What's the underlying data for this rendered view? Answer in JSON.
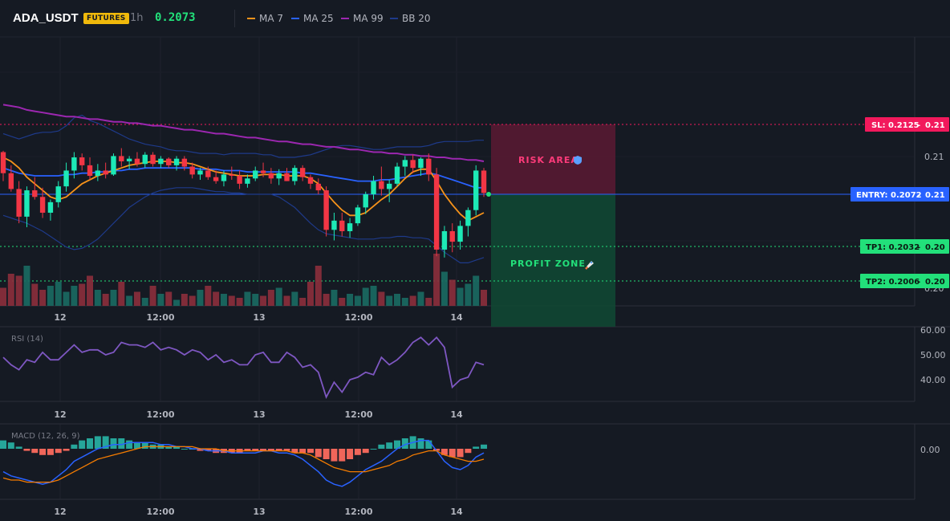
{
  "header": {
    "symbol": "ADA_USDT",
    "badge": "FUTURES",
    "timeframe": "1h",
    "price": "0.2073",
    "legend": [
      {
        "label": "MA 7",
        "color": "#f7931a"
      },
      {
        "label": "MA 25",
        "color": "#2962ff"
      },
      {
        "label": "MA 99",
        "color": "#9c27b0"
      },
      {
        "label": "BB 20",
        "color": "#1e3a8a"
      }
    ]
  },
  "colors": {
    "up": "#26a69a",
    "down": "#ef5350",
    "candle_up": "#1de9b6",
    "candle_down": "#f23645",
    "ma7": "#f7931a",
    "ma25": "#2962ff",
    "ma99": "#9c27b0",
    "bb": "#1e3a8a",
    "rsi": "#7e57c2",
    "macd": "#2962ff",
    "signal": "#f57c00",
    "sl": "#f2195c",
    "entry": "#2962ff",
    "tp": "#22e07a"
  },
  "chart_data": [
    {
      "type": "candlestick",
      "title": "ADA_USDT 1h",
      "x_ticks": [
        "12",
        "12:00",
        "13",
        "12:00",
        "14"
      ],
      "y_ticks": [
        "0.21",
        "0.20"
      ],
      "candles": [
        [
          0.2104,
          0.2105,
          0.2082,
          0.2088
        ],
        [
          0.2088,
          0.2094,
          0.2074,
          0.2076
        ],
        [
          0.2076,
          0.2082,
          0.205,
          0.2055
        ],
        [
          0.2055,
          0.2078,
          0.2047,
          0.2075
        ],
        [
          0.2075,
          0.2085,
          0.2068,
          0.207
        ],
        [
          0.207,
          0.2077,
          0.2054,
          0.2058
        ],
        [
          0.2058,
          0.2068,
          0.2052,
          0.2066
        ],
        [
          0.2066,
          0.2082,
          0.2062,
          0.2078
        ],
        [
          0.2078,
          0.2096,
          0.2074,
          0.209
        ],
        [
          0.209,
          0.2104,
          0.2084,
          0.21
        ],
        [
          0.21,
          0.2103,
          0.209,
          0.2094
        ],
        [
          0.2094,
          0.21,
          0.2083,
          0.2086
        ],
        [
          0.2086,
          0.2095,
          0.2082,
          0.209
        ],
        [
          0.209,
          0.2096,
          0.2084,
          0.2087
        ],
        [
          0.2087,
          0.2103,
          0.2086,
          0.2101
        ],
        [
          0.2101,
          0.2107,
          0.2093,
          0.2097
        ],
        [
          0.2097,
          0.2101,
          0.2091,
          0.2099
        ],
        [
          0.2099,
          0.2104,
          0.2093,
          0.2095
        ],
        [
          0.2095,
          0.2104,
          0.2092,
          0.2102
        ],
        [
          0.2102,
          0.2104,
          0.2093,
          0.2095
        ],
        [
          0.2095,
          0.2101,
          0.2092,
          0.2099
        ],
        [
          0.2099,
          0.21,
          0.2092,
          0.2094
        ],
        [
          0.2094,
          0.2101,
          0.209,
          0.2099
        ],
        [
          0.2099,
          0.2101,
          0.209,
          0.2093
        ],
        [
          0.2093,
          0.2096,
          0.2084,
          0.2087
        ],
        [
          0.2087,
          0.2092,
          0.2083,
          0.209
        ],
        [
          0.209,
          0.2093,
          0.2083,
          0.2085
        ],
        [
          0.2085,
          0.209,
          0.208,
          0.2082
        ],
        [
          0.2082,
          0.209,
          0.2078,
          0.2087
        ],
        [
          0.2087,
          0.2093,
          0.2083,
          0.2086
        ],
        [
          0.2086,
          0.209,
          0.2076,
          0.208
        ],
        [
          0.208,
          0.2087,
          0.2077,
          0.2084
        ],
        [
          0.2084,
          0.2093,
          0.2082,
          0.209
        ],
        [
          0.209,
          0.2096,
          0.2085,
          0.2088
        ],
        [
          0.2088,
          0.2092,
          0.208,
          0.2084
        ],
        [
          0.2084,
          0.2091,
          0.2079,
          0.2088
        ],
        [
          0.2088,
          0.2092,
          0.2082,
          0.2082
        ],
        [
          0.2082,
          0.2094,
          0.2079,
          0.2092
        ],
        [
          0.2092,
          0.2094,
          0.2082,
          0.2085
        ],
        [
          0.2085,
          0.2087,
          0.2076,
          0.208
        ],
        [
          0.208,
          0.2084,
          0.2072,
          0.2075
        ],
        [
          0.2075,
          0.2078,
          0.204,
          0.2045
        ],
        [
          0.2045,
          0.2058,
          0.2037,
          0.2052
        ],
        [
          0.2052,
          0.2058,
          0.204,
          0.2044
        ],
        [
          0.2044,
          0.2054,
          0.2039,
          0.205
        ],
        [
          0.205,
          0.2064,
          0.2048,
          0.2062
        ],
        [
          0.2062,
          0.2074,
          0.2057,
          0.2072
        ],
        [
          0.2072,
          0.2086,
          0.2068,
          0.2082
        ],
        [
          0.2082,
          0.2093,
          0.2071,
          0.2076
        ],
        [
          0.2076,
          0.2083,
          0.2066,
          0.208
        ],
        [
          0.208,
          0.2096,
          0.2078,
          0.2093
        ],
        [
          0.2093,
          0.2101,
          0.2086,
          0.2098
        ],
        [
          0.2098,
          0.2102,
          0.2088,
          0.2092
        ],
        [
          0.2092,
          0.21,
          0.2086,
          0.2099
        ],
        [
          0.2099,
          0.2103,
          0.2082,
          0.2087
        ],
        [
          0.2087,
          0.2092,
          0.2025,
          0.203
        ],
        [
          0.203,
          0.2048,
          0.2024,
          0.2044
        ],
        [
          0.2044,
          0.205,
          0.2028,
          0.2036
        ],
        [
          0.2036,
          0.2052,
          0.203,
          0.2048
        ],
        [
          0.2048,
          0.2062,
          0.204,
          0.206
        ],
        [
          0.206,
          0.2094,
          0.2056,
          0.209
        ],
        [
          0.209,
          0.2092,
          0.207,
          0.2073
        ]
      ],
      "volume": [
        18,
        32,
        30,
        40,
        22,
        16,
        20,
        24,
        14,
        20,
        22,
        30,
        16,
        12,
        16,
        24,
        10,
        14,
        8,
        20,
        12,
        14,
        6,
        12,
        10,
        16,
        20,
        14,
        12,
        10,
        8,
        14,
        12,
        10,
        16,
        18,
        10,
        14,
        8,
        24,
        40,
        12,
        16,
        8,
        12,
        10,
        18,
        20,
        14,
        10,
        12,
        8,
        10,
        14,
        8,
        52,
        34,
        26,
        18,
        22,
        30,
        16
      ],
      "ma7": [
        0.21,
        0.2097,
        0.2092,
        0.2085,
        0.208,
        0.2075,
        0.207,
        0.2068,
        0.207,
        0.2075,
        0.208,
        0.2083,
        0.2086,
        0.2088,
        0.209,
        0.2092,
        0.2094,
        0.2095,
        0.2096,
        0.2097,
        0.2097,
        0.2097,
        0.2096,
        0.2096,
        0.2095,
        0.2093,
        0.2091,
        0.2089,
        0.2088,
        0.2087,
        0.2086,
        0.2086,
        0.2086,
        0.2087,
        0.2087,
        0.2087,
        0.2086,
        0.2086,
        0.2086,
        0.2084,
        0.208,
        0.2073,
        0.2066,
        0.206,
        0.2056,
        0.2056,
        0.2058,
        0.2063,
        0.2068,
        0.2072,
        0.2078,
        0.2084,
        0.2089,
        0.2091,
        0.2091,
        0.2082,
        0.2072,
        0.2064,
        0.2057,
        0.2052,
        0.2055,
        0.2058
      ],
      "ma25": [
        0.2092,
        0.209,
        0.2088,
        0.2087,
        0.2086,
        0.2086,
        0.2086,
        0.2086,
        0.2087,
        0.2087,
        0.2088,
        0.2088,
        0.2089,
        0.2089,
        0.209,
        0.209,
        0.2091,
        0.2091,
        0.2092,
        0.2092,
        0.2092,
        0.2092,
        0.2092,
        0.2092,
        0.2092,
        0.2091,
        0.2091,
        0.2091,
        0.209,
        0.209,
        0.209,
        0.2089,
        0.2089,
        0.2089,
        0.2089,
        0.2089,
        0.2089,
        0.2089,
        0.2088,
        0.2088,
        0.2087,
        0.2086,
        0.2085,
        0.2084,
        0.2083,
        0.2082,
        0.2082,
        0.2082,
        0.2083,
        0.2083,
        0.2084,
        0.2085,
        0.2086,
        0.2087,
        0.2088,
        0.2087,
        0.2085,
        0.2083,
        0.2081,
        0.2079,
        0.2077,
        0.2077
      ],
      "ma99": [
        0.214,
        0.2139,
        0.2138,
        0.2136,
        0.2135,
        0.2134,
        0.2133,
        0.2132,
        0.2131,
        0.2131,
        0.213,
        0.2129,
        0.2129,
        0.2128,
        0.2127,
        0.2127,
        0.2126,
        0.2126,
        0.2125,
        0.2124,
        0.2124,
        0.2123,
        0.2122,
        0.2121,
        0.2121,
        0.212,
        0.2119,
        0.2118,
        0.2118,
        0.2117,
        0.2116,
        0.2115,
        0.2115,
        0.2114,
        0.2113,
        0.2112,
        0.2112,
        0.2111,
        0.211,
        0.211,
        0.2109,
        0.2108,
        0.2108,
        0.2107,
        0.2106,
        0.2106,
        0.2105,
        0.2104,
        0.2104,
        0.2103,
        0.2103,
        0.2102,
        0.2102,
        0.2101,
        0.2101,
        0.21,
        0.21,
        0.2099,
        0.2099,
        0.2098,
        0.2098,
        0.2097
      ],
      "bb_upper": [
        0.2118,
        0.2116,
        0.2114,
        0.2116,
        0.2118,
        0.2119,
        0.2119,
        0.212,
        0.2124,
        0.213,
        0.2132,
        0.2128,
        0.2126,
        0.2123,
        0.212,
        0.2117,
        0.2114,
        0.2112,
        0.211,
        0.2109,
        0.2108,
        0.2106,
        0.2105,
        0.2105,
        0.2104,
        0.2103,
        0.2103,
        0.2103,
        0.2102,
        0.2103,
        0.2103,
        0.2103,
        0.2103,
        0.2102,
        0.2102,
        0.21,
        0.21,
        0.21,
        0.2101,
        0.2102,
        0.2104,
        0.2106,
        0.2108,
        0.2109,
        0.2109,
        0.2108,
        0.2107,
        0.2106,
        0.2106,
        0.2107,
        0.2108,
        0.2108,
        0.2108,
        0.2108,
        0.2109,
        0.2111,
        0.2112,
        0.2112,
        0.2112,
        0.2112,
        0.2113,
        0.2113
      ],
      "bb_lower": [
        0.2056,
        0.2054,
        0.2052,
        0.205,
        0.2047,
        0.2044,
        0.204,
        0.2036,
        0.2032,
        0.203,
        0.2031,
        0.2034,
        0.2038,
        0.2044,
        0.205,
        0.2056,
        0.2062,
        0.2066,
        0.207,
        0.2073,
        0.2075,
        0.2076,
        0.2077,
        0.2077,
        0.2077,
        0.2076,
        0.2075,
        0.2074,
        0.2074,
        0.2073,
        0.2073,
        0.2072,
        0.2072,
        0.2072,
        0.2072,
        0.207,
        0.2066,
        0.2062,
        0.2056,
        0.205,
        0.2045,
        0.2042,
        0.2041,
        0.204,
        0.2039,
        0.2038,
        0.2038,
        0.2038,
        0.2039,
        0.2039,
        0.204,
        0.204,
        0.2039,
        0.2039,
        0.2038,
        0.2033,
        0.2028,
        0.2024,
        0.202,
        0.202,
        0.2022,
        0.2024
      ]
    },
    {
      "type": "line",
      "title": "RSI (14)",
      "y_ticks": [
        "60.00",
        "50.00",
        "40.00"
      ],
      "ylim": [
        30,
        62
      ],
      "values": [
        49,
        46,
        44,
        48,
        47,
        51,
        48,
        48,
        51,
        54,
        51,
        52,
        52,
        50,
        51,
        55,
        54,
        54,
        53,
        55,
        52,
        53,
        52,
        50,
        52,
        51,
        48,
        50,
        47,
        48,
        46,
        46,
        50,
        51,
        47,
        47,
        51,
        49,
        45,
        46,
        43,
        33,
        39,
        35,
        40,
        41,
        43,
        42,
        49,
        46,
        48,
        51,
        55,
        57,
        54,
        57,
        53,
        37,
        40,
        41,
        47,
        46
      ]
    },
    {
      "type": "bar",
      "title": "MACD (12, 26, 9)",
      "y_ticks": [
        "0.00"
      ],
      "histogram": [
        0.0004,
        0.0003,
        0.0001,
        -0.0001,
        -0.0002,
        -0.0003,
        -0.0003,
        -0.0002,
        -0.0001,
        0.0002,
        0.0004,
        0.0005,
        0.0006,
        0.0006,
        0.0005,
        0.0005,
        0.0004,
        0.0003,
        0.0003,
        0.0002,
        0.0002,
        0.0001,
        0.0001,
        0,
        0,
        -0.0001,
        -0.0001,
        -0.0002,
        -0.0002,
        -0.0002,
        -0.0002,
        -0.0001,
        -0.0001,
        -0.0001,
        -0.0001,
        -0.0001,
        -0.0001,
        -0.0002,
        -0.0002,
        -0.0002,
        -0.0004,
        -0.0005,
        -0.0006,
        -0.0006,
        -0.0005,
        -0.0003,
        -0.0002,
        0,
        0.0002,
        0.0003,
        0.0004,
        0.0005,
        0.0006,
        0.0005,
        0.0004,
        -0.0001,
        -0.0003,
        -0.0004,
        -0.0004,
        -0.0002,
        0.0001,
        0.0002
      ],
      "macd": [
        -0.0011,
        -0.0013,
        -0.0014,
        -0.0015,
        -0.0016,
        -0.0017,
        -0.0016,
        -0.0013,
        -0.001,
        -0.0006,
        -0.0004,
        -0.0002,
        0,
        0.0001,
        0.0002,
        0.0002,
        0.0003,
        0.0003,
        0.0003,
        0.0003,
        0.0002,
        0.0002,
        0.0001,
        0.0001,
        0,
        0,
        -0.0001,
        -0.0001,
        -0.0001,
        -0.0002,
        -0.0002,
        -0.0002,
        -0.0002,
        -0.0001,
        -0.0001,
        -0.0002,
        -0.0002,
        -0.0003,
        -0.0005,
        -0.0008,
        -0.0011,
        -0.0015,
        -0.0017,
        -0.0018,
        -0.0016,
        -0.0013,
        -0.001,
        -0.0008,
        -0.0006,
        -0.0003,
        0,
        0.0002,
        0.0003,
        0.0004,
        0.0004,
        -0.0001,
        -0.0006,
        -0.0009,
        -0.001,
        -0.0008,
        -0.0004,
        -0.0002
      ],
      "signal": [
        -0.0014,
        -0.0015,
        -0.0015,
        -0.0016,
        -0.0016,
        -0.0016,
        -0.0016,
        -0.0015,
        -0.0013,
        -0.0011,
        -0.0009,
        -0.0007,
        -0.0005,
        -0.0004,
        -0.0003,
        -0.0002,
        -0.0001,
        0,
        0.0001,
        0.0001,
        0.0001,
        0.0001,
        0.0001,
        0.0001,
        0.0001,
        0,
        0,
        0,
        -0.0001,
        -0.0001,
        -0.0001,
        -0.0001,
        -0.0001,
        -0.0001,
        -0.0001,
        -0.0001,
        -0.0001,
        -0.0002,
        -0.0002,
        -0.0003,
        -0.0005,
        -0.0007,
        -0.0009,
        -0.001,
        -0.0011,
        -0.0011,
        -0.0011,
        -0.001,
        -0.0009,
        -0.0008,
        -0.0006,
        -0.0005,
        -0.0003,
        -0.0002,
        -0.0001,
        -0.0001,
        -0.0003,
        -0.0004,
        -0.0005,
        -0.0006,
        -0.0006,
        -0.0005
      ]
    }
  ],
  "trade": {
    "sl": {
      "label": "SL: 0.2125",
      "axis": "0.21"
    },
    "entry": {
      "label": "ENTRY: 0.2072",
      "axis": "0.21"
    },
    "tp1": {
      "label": "TP1: 0.2032",
      "axis": "0.20"
    },
    "tp2": {
      "label": "TP2: 0.2006",
      "axis": "0.20"
    },
    "risk_label": "RISK AREA",
    "profit_label": "PROFIT ZONE"
  }
}
